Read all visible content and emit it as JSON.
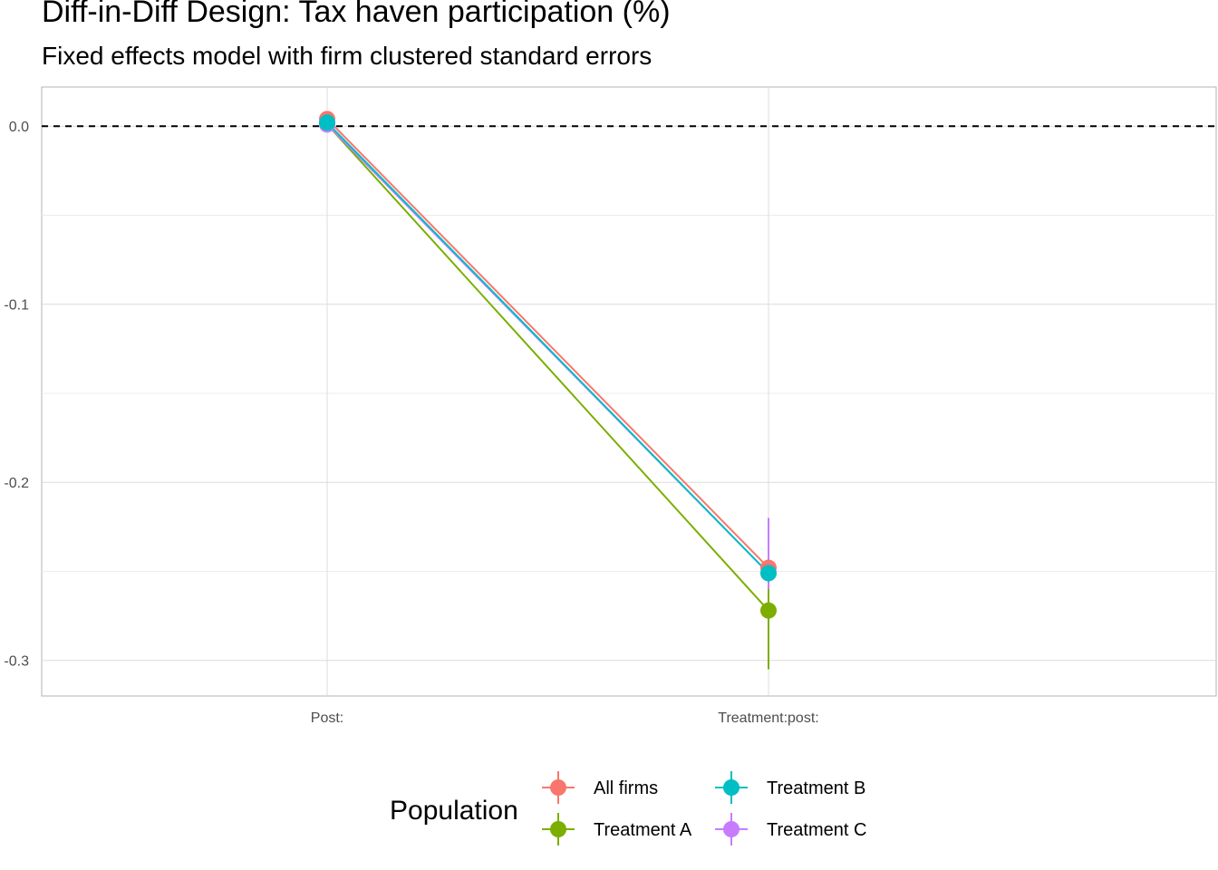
{
  "chart_data": {
    "type": "line",
    "title": "Diff-in-Diff Design: Tax haven participation (%)",
    "subtitle": "Fixed effects model with firm clustered standard errors",
    "xlabel": "",
    "ylabel": "",
    "categories": [
      "Post:",
      "Treatment:post:"
    ],
    "ylim": [
      -0.32,
      0.022
    ],
    "yticks": [
      0.0,
      -0.1,
      -0.2,
      -0.3
    ],
    "ytick_labels": [
      "0.0",
      "-0.1",
      "-0.2",
      "-0.3"
    ],
    "reference_line": {
      "y": 0,
      "style": "dashed",
      "color": "#000000"
    },
    "grid": true,
    "legend": {
      "title": "Population",
      "position": "bottom"
    },
    "series": [
      {
        "name": "All firms",
        "color": "#F8766D",
        "values": [
          0.004,
          -0.248
        ],
        "ci_low": [
          0.002,
          -0.252
        ],
        "ci_high": [
          0.006,
          -0.244
        ]
      },
      {
        "name": "Treatment A",
        "color": "#7CAE00",
        "values": [
          0.001,
          -0.272
        ],
        "ci_low": [
          -0.001,
          -0.305
        ],
        "ci_high": [
          0.003,
          -0.24
        ]
      },
      {
        "name": "Treatment B",
        "color": "#00BFC4",
        "values": [
          0.002,
          -0.251
        ],
        "ci_low": [
          0.0,
          -0.256
        ],
        "ci_high": [
          0.004,
          -0.246
        ]
      },
      {
        "name": "Treatment C",
        "color": "#C77CFF",
        "values": [
          0.001,
          -0.251
        ],
        "ci_low": [
          -0.001,
          -0.26
        ],
        "ci_high": [
          0.003,
          -0.22
        ]
      }
    ]
  }
}
